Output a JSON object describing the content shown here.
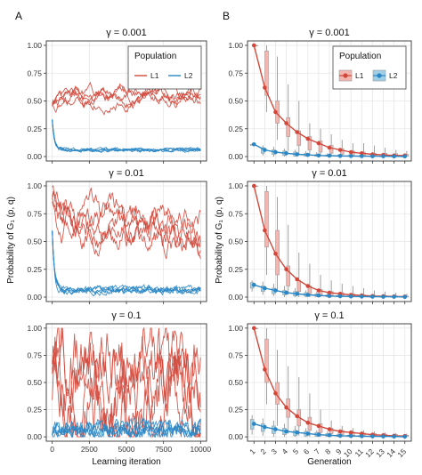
{
  "panel_labels": {
    "a": "A",
    "b": "B"
  },
  "left_ylabel": "Probability of G₁ (p, q)",
  "right_ylabel": "Probability of G₁ (p, q)",
  "colors": {
    "L1": "#d1483b",
    "L2": "#2a86c4",
    "grid": "#e6e6e6",
    "border": "#333333"
  },
  "chart_data": [
    {
      "type": "line",
      "panel": "A",
      "title": "γ = 0.001",
      "xlabel": "",
      "ylabel": "Probability of G₁ (p, q)",
      "xlim": [
        0,
        10000
      ],
      "ylim": [
        0,
        1
      ],
      "x_ticks": [
        0,
        2500,
        5000,
        7500,
        10000
      ],
      "x_tick_labels": [
        "",
        "",
        "",
        "",
        ""
      ],
      "y_ticks": [
        0,
        0.25,
        0.5,
        0.75,
        1
      ],
      "y_tick_labels": [
        "0.00",
        "0.25",
        "0.50",
        "0.75",
        "1.00"
      ],
      "grid": true,
      "legend": {
        "title": "Population",
        "placement": "top-right",
        "entries": [
          "L1",
          "L2"
        ]
      },
      "series": [
        {
          "name": "L1",
          "runs": 5,
          "start": 0.5,
          "level": 0.55,
          "noise": 0.03,
          "description_values": {
            "start": [
              0.63,
              0.58,
              0.52,
              0.48,
              0.44
            ],
            "end": [
              0.55,
              0.53,
              0.52,
              0.5,
              0.57
            ]
          }
        },
        {
          "name": "L2",
          "runs": 5,
          "start": 0.5,
          "level": 0.06,
          "noise": 0.01
        }
      ]
    },
    {
      "type": "line",
      "panel": "A",
      "title": "γ = 0.01",
      "xlabel": "",
      "ylabel": "Probability of G₁ (p, q)",
      "xlim": [
        0,
        10000
      ],
      "ylim": [
        0,
        1
      ],
      "x_ticks": [
        0,
        2500,
        5000,
        7500,
        10000
      ],
      "x_tick_labels": [
        "",
        "",
        "",
        "",
        ""
      ],
      "y_ticks": [
        0,
        0.25,
        0.5,
        0.75,
        1
      ],
      "y_tick_labels": [
        "0.00",
        "0.25",
        "0.50",
        "0.75",
        "1.00"
      ],
      "grid": true,
      "series": [
        {
          "name": "L1",
          "runs": 5,
          "start": 0.93,
          "level": 0.58,
          "noise": 0.07
        },
        {
          "name": "L2",
          "runs": 5,
          "start": 0.85,
          "level": 0.06,
          "noise": 0.02
        }
      ]
    },
    {
      "type": "line",
      "panel": "A",
      "title": "γ = 0.1",
      "xlabel": "Learning iteration",
      "ylabel": "Probability of G₁ (p, q)",
      "xlim": [
        0,
        10000
      ],
      "ylim": [
        0,
        1
      ],
      "x_ticks": [
        0,
        2500,
        5000,
        7500,
        10000
      ],
      "x_tick_labels": [
        "0",
        "2500",
        "5000",
        "7500",
        "10000"
      ],
      "y_ticks": [
        0,
        0.25,
        0.5,
        0.75,
        1
      ],
      "y_tick_labels": [
        "0.00",
        "0.25",
        "0.50",
        "0.75",
        "1.00"
      ],
      "grid": true,
      "series": [
        {
          "name": "L1",
          "runs": 5,
          "start": 0.6,
          "level": 0.6,
          "noise": 0.2
        },
        {
          "name": "L2",
          "runs": 5,
          "start": 0.1,
          "level": 0.07,
          "noise": 0.05
        }
      ]
    },
    {
      "type": "line",
      "panel": "B",
      "title": "γ = 0.001",
      "xlabel": "",
      "ylabel": "Probability of G₁ (p, q)",
      "categories": [
        "1",
        "2",
        "3",
        "4",
        "5",
        "6",
        "7",
        "8",
        "9",
        "10",
        "11",
        "12",
        "13",
        "14",
        "15"
      ],
      "x_tick_labels_visible": false,
      "ylim": [
        0,
        1
      ],
      "y_ticks": [
        0,
        0.25,
        0.5,
        0.75,
        1
      ],
      "y_tick_labels": [
        "0.00",
        "0.25",
        "0.50",
        "0.75",
        "1.00"
      ],
      "grid": true,
      "legend": {
        "title": "Population",
        "placement": "top-right",
        "entries": [
          "L1",
          "L2"
        ]
      },
      "series": [
        {
          "name": "L1",
          "mean": [
            1.0,
            0.62,
            0.4,
            0.3,
            0.22,
            0.16,
            0.12,
            0.08,
            0.06,
            0.04,
            0.03,
            0.02,
            0.015,
            0.01,
            0.01
          ],
          "q1": [
            1.0,
            0.55,
            0.3,
            0.18,
            0.1,
            0.06,
            0.04,
            0.03,
            0.02,
            0.015,
            0.01,
            0.008,
            0.005,
            0.003,
            0.002
          ],
          "q3": [
            1.0,
            0.95,
            0.5,
            0.35,
            0.23,
            0.18,
            0.14,
            0.1,
            0.07,
            0.05,
            0.04,
            0.03,
            0.03,
            0.025,
            0.02
          ],
          "whisker_high": [
            1.0,
            1.0,
            0.9,
            0.65,
            0.5,
            0.3,
            0.25,
            0.2,
            0.15,
            0.12,
            0.12,
            0.1,
            0.08,
            0.06,
            0.05
          ],
          "whisker_low": [
            1.0,
            0.4,
            0.15,
            0.05,
            0.02,
            0.01,
            0.005,
            0.0,
            0.0,
            0.0,
            0.0,
            0.0,
            0.0,
            0.0,
            0.0
          ]
        },
        {
          "name": "L2",
          "mean": [
            0.11,
            0.06,
            0.04,
            0.03,
            0.02,
            0.015,
            0.01,
            0.008,
            0.006,
            0.005,
            0.004,
            0.003,
            0.003,
            0.002,
            0.002
          ],
          "q1": [
            0.1,
            0.03,
            0.02,
            0.01,
            0.005,
            0.004,
            0.003,
            0.002,
            0.0015,
            0.001,
            0.001,
            0.001,
            0.0,
            0.0,
            0.0
          ],
          "q3": [
            0.11,
            0.08,
            0.06,
            0.05,
            0.04,
            0.03,
            0.02,
            0.015,
            0.01,
            0.008,
            0.006,
            0.005,
            0.004,
            0.004,
            0.003
          ],
          "whisker_high": [
            0.12,
            0.1,
            0.09,
            0.07,
            0.06,
            0.05,
            0.04,
            0.03,
            0.02,
            0.02,
            0.015,
            0.012,
            0.01,
            0.01,
            0.008
          ],
          "whisker_low": [
            0.1,
            0.01,
            0.0,
            0.0,
            0.0,
            0.0,
            0.0,
            0.0,
            0.0,
            0.0,
            0.0,
            0.0,
            0.0,
            0.0,
            0.0
          ]
        }
      ]
    },
    {
      "type": "line",
      "panel": "B",
      "title": "γ = 0.01",
      "xlabel": "",
      "ylabel": "Probability of G₁ (p, q)",
      "categories": [
        "1",
        "2",
        "3",
        "4",
        "5",
        "6",
        "7",
        "8",
        "9",
        "10",
        "11",
        "12",
        "13",
        "14",
        "15"
      ],
      "x_tick_labels_visible": false,
      "ylim": [
        0,
        1
      ],
      "y_ticks": [
        0,
        0.25,
        0.5,
        0.75,
        1
      ],
      "y_tick_labels": [
        "0.00",
        "0.25",
        "0.50",
        "0.75",
        "1.00"
      ],
      "grid": true,
      "series": [
        {
          "name": "L1",
          "mean": [
            1.0,
            0.6,
            0.39,
            0.25,
            0.16,
            0.1,
            0.06,
            0.04,
            0.03,
            0.02,
            0.015,
            0.01,
            0.008,
            0.006,
            0.005
          ],
          "q1": [
            1.0,
            0.45,
            0.2,
            0.1,
            0.05,
            0.03,
            0.02,
            0.01,
            0.008,
            0.005,
            0.004,
            0.003,
            0.002,
            0.002,
            0.001
          ],
          "q3": [
            1.0,
            0.95,
            0.6,
            0.28,
            0.15,
            0.1,
            0.07,
            0.05,
            0.04,
            0.03,
            0.02,
            0.015,
            0.012,
            0.01,
            0.008
          ],
          "whisker_high": [
            1.0,
            1.0,
            0.9,
            0.65,
            0.4,
            0.3,
            0.2,
            0.15,
            0.12,
            0.1,
            0.08,
            0.06,
            0.05,
            0.04,
            0.03
          ],
          "whisker_low": [
            1.0,
            0.2,
            0.05,
            0.02,
            0.0,
            0.0,
            0.0,
            0.0,
            0.0,
            0.0,
            0.0,
            0.0,
            0.0,
            0.0,
            0.0
          ]
        },
        {
          "name": "L2",
          "mean": [
            0.11,
            0.08,
            0.06,
            0.04,
            0.03,
            0.02,
            0.015,
            0.01,
            0.008,
            0.006,
            0.005,
            0.004,
            0.003,
            0.003,
            0.002
          ],
          "q1": [
            0.08,
            0.05,
            0.03,
            0.02,
            0.01,
            0.008,
            0.005,
            0.004,
            0.003,
            0.002,
            0.002,
            0.001,
            0.001,
            0.001,
            0.0
          ],
          "q3": [
            0.13,
            0.1,
            0.08,
            0.06,
            0.05,
            0.04,
            0.03,
            0.02,
            0.015,
            0.012,
            0.01,
            0.008,
            0.006,
            0.005,
            0.004
          ],
          "whisker_high": [
            0.15,
            0.14,
            0.12,
            0.1,
            0.08,
            0.06,
            0.05,
            0.04,
            0.03,
            0.025,
            0.02,
            0.015,
            0.012,
            0.01,
            0.008
          ],
          "whisker_low": [
            0.05,
            0.02,
            0.01,
            0.0,
            0.0,
            0.0,
            0.0,
            0.0,
            0.0,
            0.0,
            0.0,
            0.0,
            0.0,
            0.0,
            0.0
          ]
        }
      ]
    },
    {
      "type": "line",
      "panel": "B",
      "title": "γ = 0.1",
      "xlabel": "Generation",
      "ylabel": "Probability of G₁ (p, q)",
      "categories": [
        "1",
        "2",
        "3",
        "4",
        "5",
        "6",
        "7",
        "8",
        "9",
        "10",
        "11",
        "12",
        "13",
        "14",
        "15"
      ],
      "x_tick_labels_visible": true,
      "ylim": [
        0,
        1
      ],
      "y_ticks": [
        0,
        0.25,
        0.5,
        0.75,
        1
      ],
      "y_tick_labels": [
        "0.00",
        "0.25",
        "0.50",
        "0.75",
        "1.00"
      ],
      "grid": true,
      "series": [
        {
          "name": "L1",
          "mean": [
            1.0,
            0.62,
            0.4,
            0.27,
            0.19,
            0.13,
            0.1,
            0.07,
            0.05,
            0.04,
            0.03,
            0.02,
            0.015,
            0.01,
            0.008
          ],
          "q1": [
            1.0,
            0.5,
            0.3,
            0.18,
            0.1,
            0.06,
            0.04,
            0.03,
            0.02,
            0.015,
            0.01,
            0.008,
            0.006,
            0.005,
            0.004
          ],
          "q3": [
            1.0,
            0.9,
            0.5,
            0.35,
            0.25,
            0.18,
            0.12,
            0.08,
            0.06,
            0.045,
            0.035,
            0.03,
            0.025,
            0.02,
            0.015
          ],
          "whisker_high": [
            1.0,
            1.0,
            0.8,
            0.65,
            0.55,
            0.4,
            0.25,
            0.15,
            0.1,
            0.08,
            0.06,
            0.05,
            0.04,
            0.035,
            0.03
          ],
          "whisker_low": [
            1.0,
            0.3,
            0.1,
            0.03,
            0.01,
            0.0,
            0.0,
            0.0,
            0.0,
            0.0,
            0.0,
            0.0,
            0.0,
            0.0,
            0.0
          ]
        },
        {
          "name": "L2",
          "mean": [
            0.12,
            0.09,
            0.07,
            0.05,
            0.04,
            0.03,
            0.02,
            0.015,
            0.01,
            0.008,
            0.006,
            0.005,
            0.004,
            0.003,
            0.002
          ],
          "q1": [
            0.07,
            0.05,
            0.03,
            0.02,
            0.01,
            0.008,
            0.005,
            0.004,
            0.003,
            0.002,
            0.002,
            0.001,
            0.001,
            0.001,
            0.0
          ],
          "q3": [
            0.16,
            0.12,
            0.1,
            0.08,
            0.06,
            0.05,
            0.04,
            0.03,
            0.02,
            0.015,
            0.012,
            0.01,
            0.008,
            0.006,
            0.005
          ],
          "whisker_high": [
            0.2,
            0.17,
            0.15,
            0.12,
            0.1,
            0.08,
            0.06,
            0.05,
            0.04,
            0.03,
            0.025,
            0.02,
            0.015,
            0.012,
            0.01
          ],
          "whisker_low": [
            0.02,
            0.01,
            0.0,
            0.0,
            0.0,
            0.0,
            0.0,
            0.0,
            0.0,
            0.0,
            0.0,
            0.0,
            0.0,
            0.0,
            0.0
          ]
        }
      ]
    }
  ]
}
